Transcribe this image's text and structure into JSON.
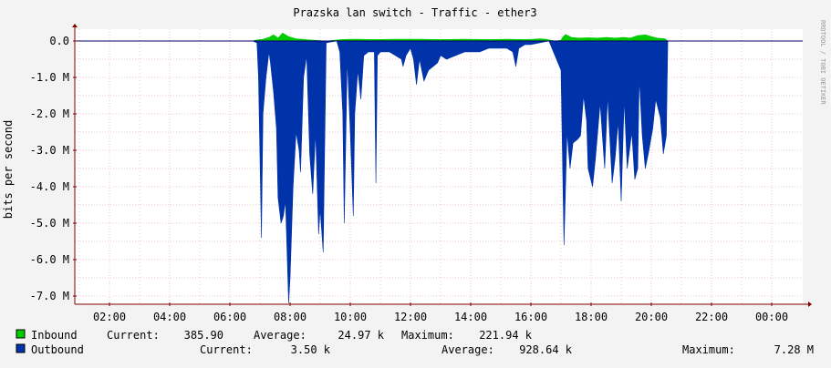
{
  "chart_data": {
    "type": "area",
    "title": "Prazska lan switch - Traffic - ether3",
    "ylabel": "bits per second",
    "watermark": "RRDTOOL / TOBI OETIKER",
    "ylim": [
      -7.3,
      0.3
    ],
    "xlim": [
      0.6,
      25.0
    ],
    "x_unit": "hour of day (values above 24 are past midnight)",
    "y_unit": "M bits per second",
    "grid": true,
    "y_ticks": [
      {
        "value": 0,
        "label": "0.0"
      },
      {
        "value": -1,
        "label": "-1.0 M"
      },
      {
        "value": -2,
        "label": "-2.0 M"
      },
      {
        "value": -3,
        "label": "-3.0 M"
      },
      {
        "value": -4,
        "label": "-4.0 M"
      },
      {
        "value": -5,
        "label": "-5.0 M"
      },
      {
        "value": -6,
        "label": "-6.0 M"
      },
      {
        "value": -7,
        "label": "-7.0 M"
      }
    ],
    "x_ticks": [
      {
        "value": 2,
        "label": "02:00"
      },
      {
        "value": 4,
        "label": "04:00"
      },
      {
        "value": 6,
        "label": "06:00"
      },
      {
        "value": 8,
        "label": "08:00"
      },
      {
        "value": 10,
        "label": "10:00"
      },
      {
        "value": 12,
        "label": "12:00"
      },
      {
        "value": 14,
        "label": "14:00"
      },
      {
        "value": 16,
        "label": "16:00"
      },
      {
        "value": 18,
        "label": "18:00"
      },
      {
        "value": 20,
        "label": "20:00"
      },
      {
        "value": 22,
        "label": "22:00"
      },
      {
        "value": 24,
        "label": "00:00"
      }
    ],
    "colors": {
      "inbound": "#00cc00",
      "outbound": "#0033aa",
      "background": "#f3f3f3",
      "canvas": "#ffffff",
      "grid": "#e8c8c8",
      "axis": "#800000",
      "zero_line": "#000066"
    },
    "series": [
      {
        "name": "Inbound",
        "color": "#00cc00",
        "stats": {
          "current": "385.90",
          "average": "24.97 k",
          "maximum": "221.94 k"
        },
        "points": [
          [
            6.75,
            0
          ],
          [
            6.9,
            0.03
          ],
          [
            7.1,
            0.05
          ],
          [
            7.3,
            0.1
          ],
          [
            7.45,
            0.17
          ],
          [
            7.6,
            0.08
          ],
          [
            7.75,
            0.22
          ],
          [
            7.95,
            0.12
          ],
          [
            8.2,
            0.06
          ],
          [
            8.5,
            0.04
          ],
          [
            8.8,
            0.02
          ],
          [
            9.2,
            0
          ],
          [
            9.7,
            0.04
          ],
          [
            10.2,
            0.05
          ],
          [
            10.8,
            0.04
          ],
          [
            11.5,
            0.05
          ],
          [
            12.3,
            0.05
          ],
          [
            13.0,
            0.04
          ],
          [
            13.8,
            0.05
          ],
          [
            14.6,
            0.04
          ],
          [
            15.2,
            0.05
          ],
          [
            15.8,
            0.04
          ],
          [
            16.1,
            0.05
          ],
          [
            16.3,
            0.06
          ],
          [
            16.5,
            0.05
          ],
          [
            16.8,
            0
          ],
          [
            17.0,
            0.02
          ],
          [
            17.05,
            0.1
          ],
          [
            17.15,
            0.18
          ],
          [
            17.35,
            0.1
          ],
          [
            17.6,
            0.08
          ],
          [
            17.9,
            0.09
          ],
          [
            18.2,
            0.08
          ],
          [
            18.5,
            0.1
          ],
          [
            18.8,
            0.08
          ],
          [
            19.1,
            0.1
          ],
          [
            19.3,
            0.08
          ],
          [
            19.55,
            0.15
          ],
          [
            19.8,
            0.17
          ],
          [
            20.0,
            0.12
          ],
          [
            20.2,
            0.08
          ],
          [
            20.45,
            0.06
          ],
          [
            20.55,
            0
          ],
          [
            25.0,
            0
          ]
        ]
      },
      {
        "name": "Outbound",
        "color": "#0033aa",
        "stats": {
          "current": "3.50 k",
          "average": "928.64 k",
          "maximum": "7.28 M"
        },
        "points": [
          [
            6.75,
            0
          ],
          [
            6.9,
            -0.05
          ],
          [
            6.95,
            -1.0
          ],
          [
            7.05,
            -5.4
          ],
          [
            7.1,
            -2.0
          ],
          [
            7.2,
            -1.0
          ],
          [
            7.3,
            -0.3
          ],
          [
            7.35,
            -0.6
          ],
          [
            7.45,
            -1.4
          ],
          [
            7.55,
            -2.4
          ],
          [
            7.6,
            -4.3
          ],
          [
            7.7,
            -5.0
          ],
          [
            7.78,
            -4.8
          ],
          [
            7.85,
            -4.4
          ],
          [
            7.95,
            -7.2
          ],
          [
            8.0,
            -6.5
          ],
          [
            8.1,
            -4.0
          ],
          [
            8.2,
            -2.5
          ],
          [
            8.3,
            -3.0
          ],
          [
            8.35,
            -3.6
          ],
          [
            8.45,
            -1.0
          ],
          [
            8.55,
            -0.4
          ],
          [
            8.65,
            -3.1
          ],
          [
            8.75,
            -4.2
          ],
          [
            8.85,
            -2.5
          ],
          [
            8.95,
            -5.3
          ],
          [
            9.0,
            -4.6
          ],
          [
            9.1,
            -5.8
          ],
          [
            9.2,
            -0.05
          ],
          [
            9.55,
            0
          ],
          [
            9.65,
            -0.3
          ],
          [
            9.75,
            -2.0
          ],
          [
            9.8,
            -5.0
          ],
          [
            9.9,
            -0.5
          ],
          [
            10.0,
            -2.5
          ],
          [
            10.1,
            -4.8
          ],
          [
            10.15,
            -2.0
          ],
          [
            10.25,
            -0.8
          ],
          [
            10.35,
            -1.6
          ],
          [
            10.45,
            -0.4
          ],
          [
            10.6,
            -0.3
          ],
          [
            10.8,
            -0.3
          ],
          [
            10.85,
            -3.9
          ],
          [
            10.9,
            -0.4
          ],
          [
            11.0,
            -0.3
          ],
          [
            11.3,
            -0.3
          ],
          [
            11.5,
            -0.4
          ],
          [
            11.7,
            -0.5
          ],
          [
            11.75,
            -0.7
          ],
          [
            11.85,
            -0.4
          ],
          [
            12.0,
            -0.2
          ],
          [
            12.1,
            -0.5
          ],
          [
            12.2,
            -1.2
          ],
          [
            12.3,
            -0.5
          ],
          [
            12.45,
            -1.1
          ],
          [
            12.6,
            -0.8
          ],
          [
            12.75,
            -0.7
          ],
          [
            12.9,
            -0.6
          ],
          [
            13.0,
            -0.4
          ],
          [
            13.2,
            -0.5
          ],
          [
            13.5,
            -0.4
          ],
          [
            13.8,
            -0.3
          ],
          [
            14.0,
            -0.3
          ],
          [
            14.3,
            -0.3
          ],
          [
            14.6,
            -0.2
          ],
          [
            14.9,
            -0.2
          ],
          [
            15.2,
            -0.2
          ],
          [
            15.4,
            -0.3
          ],
          [
            15.5,
            -0.7
          ],
          [
            15.6,
            -0.2
          ],
          [
            15.8,
            -0.1
          ],
          [
            16.0,
            -0.1
          ],
          [
            16.3,
            -0.05
          ],
          [
            16.6,
            0
          ],
          [
            17.0,
            -0.8
          ],
          [
            17.1,
            -5.6
          ],
          [
            17.2,
            -2.5
          ],
          [
            17.3,
            -3.5
          ],
          [
            17.4,
            -2.8
          ],
          [
            17.55,
            -2.7
          ],
          [
            17.65,
            -2.6
          ],
          [
            17.75,
            -1.5
          ],
          [
            17.85,
            -2.2
          ],
          [
            17.9,
            -3.5
          ],
          [
            18.05,
            -4.0
          ],
          [
            18.15,
            -3.2
          ],
          [
            18.3,
            -1.7
          ],
          [
            18.45,
            -3.5
          ],
          [
            18.55,
            -1.5
          ],
          [
            18.7,
            -3.9
          ],
          [
            18.8,
            -3.2
          ],
          [
            18.9,
            -2.2
          ],
          [
            19.0,
            -4.4
          ],
          [
            19.1,
            -1.6
          ],
          [
            19.2,
            -3.5
          ],
          [
            19.35,
            -2.5
          ],
          [
            19.45,
            -3.8
          ],
          [
            19.55,
            -3.5
          ],
          [
            19.6,
            -1.0
          ],
          [
            19.7,
            -2.6
          ],
          [
            19.8,
            -3.5
          ],
          [
            19.9,
            -3.1
          ],
          [
            20.05,
            -2.4
          ],
          [
            20.15,
            -1.6
          ],
          [
            20.3,
            -2.1
          ],
          [
            20.4,
            -3.1
          ],
          [
            20.5,
            -2.6
          ],
          [
            20.55,
            0
          ],
          [
            25.0,
            0
          ]
        ]
      }
    ]
  },
  "legend": {
    "inbound": {
      "label": "Inbound",
      "current_label": "Current:",
      "current": "385.90",
      "average_label": "Average:",
      "average": "24.97 k",
      "maximum_label": "Maximum:",
      "maximum": "221.94 k"
    },
    "outbound": {
      "label": "Outbound",
      "current_label": "Current:",
      "current": "3.50 k",
      "average_label": "Average:",
      "average": "928.64 k",
      "maximum_label": "Maximum:",
      "maximum": "7.28 M"
    }
  }
}
